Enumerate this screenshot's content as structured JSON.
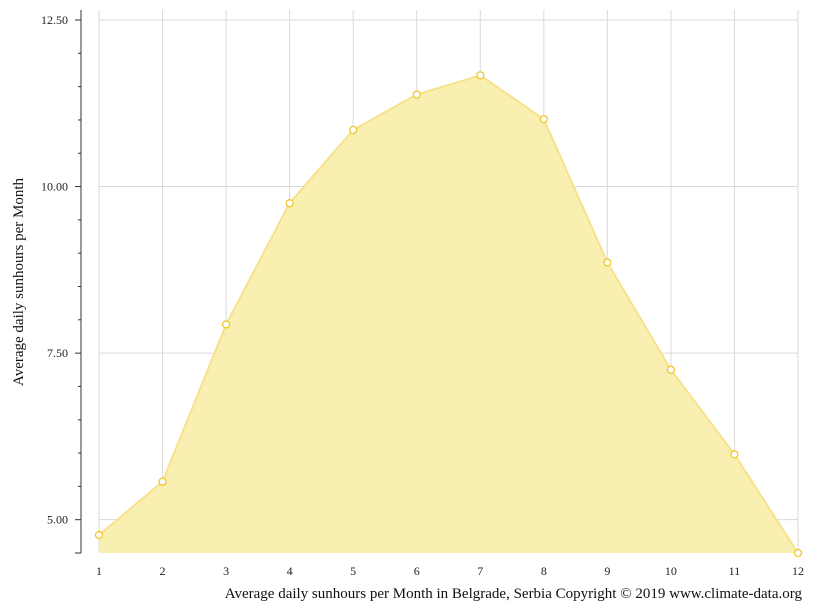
{
  "chart_data": {
    "type": "area",
    "xlabel": "Average daily sunhours per Month in Belgrade, Serbia Copyright © 2019 www.climate-data.org",
    "ylabel": "Average daily sunhours per Month",
    "x": [
      1,
      2,
      3,
      4,
      5,
      6,
      7,
      8,
      9,
      10,
      11,
      12
    ],
    "values": [
      4.77,
      5.57,
      7.93,
      9.75,
      10.85,
      11.38,
      11.67,
      11.01,
      8.86,
      7.25,
      5.98,
      4.5
    ],
    "xlim": [
      1,
      12
    ],
    "ylim": [
      4.5,
      12.65
    ],
    "yticks": [
      "5.00",
      "7.50",
      "10.00",
      "12.50"
    ],
    "ytick_values": [
      5,
      7.5,
      10,
      12.5
    ],
    "xticks": [
      "1",
      "2",
      "3",
      "4",
      "5",
      "6",
      "7",
      "8",
      "9",
      "10",
      "11",
      "12"
    ],
    "grid": true,
    "colors": {
      "fill": "#f9eeac",
      "line": "#f6e28c",
      "marker_stroke": "#f0c419",
      "grid": "#d9d9d9",
      "axis": "#333333"
    }
  }
}
